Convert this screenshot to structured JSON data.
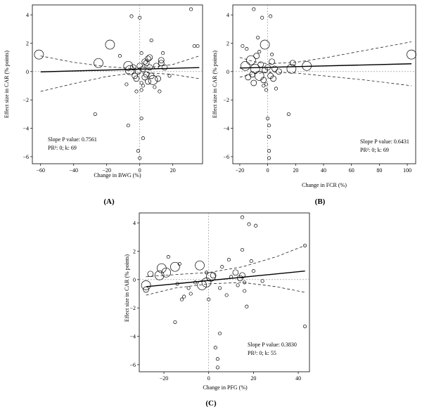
{
  "chart_data": [
    {
      "id": "A",
      "type": "scatter",
      "panel_label": "(A)",
      "xlabel": "Change in BWG (%)",
      "ylabel": "Effect size in CAR (% points)",
      "xlim": [
        -65,
        38
      ],
      "ylim": [
        -6.5,
        4.7
      ],
      "xticks": [
        -60,
        -40,
        -20,
        0,
        20
      ],
      "yticks": [
        -6,
        -4,
        -2,
        0,
        2,
        4
      ],
      "annotation_line1": "Slope P value: 0.7561",
      "annotation_line2": "PR²: 0; k: 69",
      "grid": false,
      "reference_lines": {
        "x": 0,
        "y": 0
      },
      "regression": {
        "x0": -60,
        "y0": -0.02,
        "x1": 36,
        "y1": 0.28
      },
      "ci_upper": [
        [
          -60,
          1.1
        ],
        [
          -40,
          0.65
        ],
        [
          -20,
          0.35
        ],
        [
          -5,
          0.22
        ],
        [
          5,
          0.28
        ],
        [
          20,
          0.5
        ],
        [
          36,
          1.1
        ]
      ],
      "ci_lower": [
        [
          -60,
          -1.4
        ],
        [
          -40,
          -0.85
        ],
        [
          -20,
          -0.35
        ],
        [
          -5,
          -0.12
        ],
        [
          5,
          -0.08
        ],
        [
          20,
          -0.2
        ],
        [
          36,
          -0.5
        ]
      ],
      "points": [
        {
          "x": -61,
          "y": 1.2,
          "w": 3
        },
        {
          "x": -25,
          "y": 0.6,
          "w": 3
        },
        {
          "x": -27,
          "y": -3.0,
          "w": 1
        },
        {
          "x": -18,
          "y": 1.9,
          "w": 3
        },
        {
          "x": -12,
          "y": 1.1,
          "w": 1
        },
        {
          "x": -7,
          "y": 0.4,
          "w": 3
        },
        {
          "x": -6,
          "y": 0.1,
          "w": 3
        },
        {
          "x": -4,
          "y": 0.3,
          "w": 2
        },
        {
          "x": -3,
          "y": -0.3,
          "w": 2
        },
        {
          "x": -5,
          "y": 3.9,
          "w": 1
        },
        {
          "x": -8,
          "y": -0.9,
          "w": 1
        },
        {
          "x": -7,
          "y": -3.8,
          "w": 1
        },
        {
          "x": -2,
          "y": -0.5,
          "w": 2
        },
        {
          "x": -1,
          "y": 0.0,
          "w": 2
        },
        {
          "x": 0,
          "y": 3.8,
          "w": 1
        },
        {
          "x": 0,
          "y": 0.4,
          "w": 2
        },
        {
          "x": 1,
          "y": -0.8,
          "w": 1
        },
        {
          "x": 1,
          "y": -1.3,
          "w": 1
        },
        {
          "x": 1,
          "y": 1.3,
          "w": 1
        },
        {
          "x": 2,
          "y": 0.2,
          "w": 2
        },
        {
          "x": 2,
          "y": -1.0,
          "w": 1
        },
        {
          "x": 3,
          "y": -0.4,
          "w": 2
        },
        {
          "x": 3,
          "y": 0.7,
          "w": 2
        },
        {
          "x": 2,
          "y": -4.7,
          "w": 1
        },
        {
          "x": -1,
          "y": -5.6,
          "w": 1
        },
        {
          "x": 0,
          "y": -6.1,
          "w": 1
        },
        {
          "x": 4,
          "y": -0.2,
          "w": 2
        },
        {
          "x": 5,
          "y": 0.9,
          "w": 2
        },
        {
          "x": 5,
          "y": -0.7,
          "w": 2
        },
        {
          "x": 6,
          "y": 0.3,
          "w": 2
        },
        {
          "x": 6,
          "y": 1.0,
          "w": 2
        },
        {
          "x": 7,
          "y": 2.2,
          "w": 1
        },
        {
          "x": 7,
          "y": -0.3,
          "w": 2
        },
        {
          "x": 8,
          "y": -0.6,
          "w": 3
        },
        {
          "x": 9,
          "y": -1.1,
          "w": 1
        },
        {
          "x": 10,
          "y": 0.4,
          "w": 2
        },
        {
          "x": 11,
          "y": -0.5,
          "w": 2
        },
        {
          "x": 13,
          "y": 0.6,
          "w": 2
        },
        {
          "x": 13,
          "y": 0.8,
          "w": 2
        },
        {
          "x": 14,
          "y": 1.3,
          "w": 1
        },
        {
          "x": 15,
          "y": 0.3,
          "w": 2
        },
        {
          "x": 12,
          "y": -1.4,
          "w": 1
        },
        {
          "x": 18,
          "y": -0.3,
          "w": 1
        },
        {
          "x": 31,
          "y": 4.4,
          "w": 1
        },
        {
          "x": 33,
          "y": 1.8,
          "w": 1
        },
        {
          "x": 35,
          "y": 1.8,
          "w": 1
        },
        {
          "x": 1,
          "y": -3.3,
          "w": 1
        },
        {
          "x": 4,
          "y": 0.6,
          "w": 2
        },
        {
          "x": -2,
          "y": -1.4,
          "w": 1
        }
      ]
    },
    {
      "id": "B",
      "type": "scatter",
      "panel_label": "(B)",
      "xlabel": "Change in FCR (%)",
      "ylabel": "Effect size in CAR (% points)",
      "xlim": [
        -25,
        106
      ],
      "ylim": [
        -6.5,
        4.7
      ],
      "xticks": [
        -20,
        0,
        20,
        40,
        60,
        80,
        100
      ],
      "yticks": [
        -6,
        -4,
        -2,
        0,
        2,
        4
      ],
      "annotation_line1": "Slope P value: 0.6431",
      "annotation_line2": "PR²: 0; k: 69",
      "grid": false,
      "reference_lines": {
        "x": 0,
        "y": 0
      },
      "regression": {
        "x0": -20,
        "y0": 0.25,
        "x1": 103,
        "y1": 0.55
      },
      "ci_upper": [
        [
          -20,
          1.0
        ],
        [
          -10,
          0.7
        ],
        [
          0,
          0.55
        ],
        [
          20,
          0.65
        ],
        [
          40,
          0.95
        ],
        [
          70,
          1.5
        ],
        [
          103,
          2.1
        ]
      ],
      "ci_lower": [
        [
          -20,
          -0.4
        ],
        [
          -10,
          -0.15
        ],
        [
          0,
          -0.05
        ],
        [
          20,
          -0.1
        ],
        [
          40,
          -0.3
        ],
        [
          70,
          -0.6
        ],
        [
          103,
          -1.0
        ]
      ],
      "points": [
        {
          "x": -18,
          "y": 1.8,
          "w": 1
        },
        {
          "x": -16,
          "y": 0.4,
          "w": 3
        },
        {
          "x": -15,
          "y": 1.6,
          "w": 1
        },
        {
          "x": -12,
          "y": 0.8,
          "w": 3
        },
        {
          "x": -10,
          "y": 4.4,
          "w": 1
        },
        {
          "x": -8,
          "y": 1.1,
          "w": 2
        },
        {
          "x": -6,
          "y": -0.3,
          "w": 3
        },
        {
          "x": -5,
          "y": 0.5,
          "w": 2
        },
        {
          "x": -4,
          "y": 3.8,
          "w": 1
        },
        {
          "x": -3,
          "y": -0.6,
          "w": 2
        },
        {
          "x": -2,
          "y": 1.9,
          "w": 3
        },
        {
          "x": -2,
          "y": 0.1,
          "w": 2
        },
        {
          "x": -1,
          "y": -0.9,
          "w": 1
        },
        {
          "x": -1,
          "y": -1.3,
          "w": 1
        },
        {
          "x": 0,
          "y": 0.3,
          "w": 2
        },
        {
          "x": 0,
          "y": -3.3,
          "w": 1
        },
        {
          "x": 1,
          "y": -3.8,
          "w": 1
        },
        {
          "x": 1,
          "y": -4.6,
          "w": 1
        },
        {
          "x": 1,
          "y": -5.6,
          "w": 1
        },
        {
          "x": 1,
          "y": -6.1,
          "w": 1
        },
        {
          "x": 2,
          "y": 3.9,
          "w": 1
        },
        {
          "x": 2,
          "y": -0.3,
          "w": 2
        },
        {
          "x": 3,
          "y": 0.7,
          "w": 2
        },
        {
          "x": 4,
          "y": -0.5,
          "w": 2
        },
        {
          "x": 5,
          "y": 0.2,
          "w": 2
        },
        {
          "x": 6,
          "y": -1.2,
          "w": 1
        },
        {
          "x": 8,
          "y": 0.0,
          "w": 2
        },
        {
          "x": -14,
          "y": -0.4,
          "w": 2
        },
        {
          "x": -10,
          "y": -0.8,
          "w": 2
        },
        {
          "x": -7,
          "y": 2.4,
          "w": 1
        },
        {
          "x": -6,
          "y": 1.4,
          "w": 1
        },
        {
          "x": -9,
          "y": 0.2,
          "w": 3
        },
        {
          "x": 15,
          "y": -3.0,
          "w": 1
        },
        {
          "x": 17,
          "y": 0.2,
          "w": 3
        },
        {
          "x": 18,
          "y": 0.6,
          "w": 2
        },
        {
          "x": 28,
          "y": 0.4,
          "w": 3
        },
        {
          "x": 103,
          "y": 1.2,
          "w": 3
        },
        {
          "x": -3,
          "y": -1.0,
          "w": 1
        },
        {
          "x": 3,
          "y": 1.2,
          "w": 1
        },
        {
          "x": -11,
          "y": -0.2,
          "w": 2
        }
      ]
    },
    {
      "id": "C",
      "type": "scatter",
      "panel_label": "(C)",
      "xlabel": "Change in PFG (%)",
      "ylabel": "Effect size in CAR (% points)",
      "xlim": [
        -31,
        45
      ],
      "ylim": [
        -6.5,
        4.7
      ],
      "xticks": [
        -20,
        0,
        20,
        40
      ],
      "yticks": [
        -6,
        -4,
        -2,
        0,
        2,
        4
      ],
      "annotation_line1": "Slope P value: 0.3830",
      "annotation_line2": "PR²: 0; k: 55",
      "grid": false,
      "reference_lines": {
        "x": 0,
        "y": 0
      },
      "regression": {
        "x0": -28,
        "y0": -0.5,
        "x1": 43,
        "y1": 0.6
      },
      "ci_upper": [
        [
          -28,
          0.2
        ],
        [
          -15,
          0.35
        ],
        [
          0,
          0.5
        ],
        [
          15,
          0.9
        ],
        [
          30,
          1.6
        ],
        [
          43,
          2.4
        ]
      ],
      "ci_lower": [
        [
          -28,
          -1.1
        ],
        [
          -15,
          -0.6
        ],
        [
          0,
          -0.3
        ],
        [
          15,
          -0.2
        ],
        [
          30,
          -0.5
        ],
        [
          43,
          -0.9
        ]
      ],
      "points": [
        {
          "x": -28,
          "y": -0.4,
          "w": 3
        },
        {
          "x": -28,
          "y": -0.7,
          "w": 2
        },
        {
          "x": -26,
          "y": 0.4,
          "w": 2
        },
        {
          "x": -22,
          "y": 0.3,
          "w": 3
        },
        {
          "x": -21,
          "y": 0.8,
          "w": 3
        },
        {
          "x": -19,
          "y": 0.5,
          "w": 3
        },
        {
          "x": -18,
          "y": 1.6,
          "w": 1
        },
        {
          "x": -15,
          "y": 0.9,
          "w": 3
        },
        {
          "x": -14,
          "y": -0.3,
          "w": 1
        },
        {
          "x": -13,
          "y": 1.1,
          "w": 1
        },
        {
          "x": -12,
          "y": -1.4,
          "w": 1
        },
        {
          "x": -11,
          "y": -1.2,
          "w": 1
        },
        {
          "x": -9,
          "y": -0.6,
          "w": 1
        },
        {
          "x": -15,
          "y": -3.0,
          "w": 1
        },
        {
          "x": -8,
          "y": -1.0,
          "w": 1
        },
        {
          "x": -6,
          "y": -0.2,
          "w": 1
        },
        {
          "x": -4,
          "y": 1.0,
          "w": 3
        },
        {
          "x": -3,
          "y": -0.4,
          "w": 3
        },
        {
          "x": -1,
          "y": 0.5,
          "w": 1
        },
        {
          "x": -1,
          "y": -0.2,
          "w": 3
        },
        {
          "x": 0,
          "y": -1.4,
          "w": 1
        },
        {
          "x": 2,
          "y": 0.3,
          "w": 2
        },
        {
          "x": 3,
          "y": -4.8,
          "w": 1
        },
        {
          "x": 4,
          "y": -5.6,
          "w": 1
        },
        {
          "x": 5,
          "y": -3.8,
          "w": 1
        },
        {
          "x": 4,
          "y": -6.2,
          "w": 1
        },
        {
          "x": 5,
          "y": -0.6,
          "w": 1
        },
        {
          "x": 6,
          "y": 0.9,
          "w": 1
        },
        {
          "x": 8,
          "y": -1.1,
          "w": 1
        },
        {
          "x": 9,
          "y": 1.4,
          "w": 1
        },
        {
          "x": 10,
          "y": 0.2,
          "w": 1
        },
        {
          "x": 12,
          "y": 0.5,
          "w": 2
        },
        {
          "x": 13,
          "y": -0.4,
          "w": 1
        },
        {
          "x": 15,
          "y": 0.3,
          "w": 2
        },
        {
          "x": 15,
          "y": 4.4,
          "w": 1
        },
        {
          "x": 15,
          "y": 2.1,
          "w": 1
        },
        {
          "x": 16,
          "y": -0.8,
          "w": 1
        },
        {
          "x": 16,
          "y": -0.2,
          "w": 1
        },
        {
          "x": 17,
          "y": -1.9,
          "w": 1
        },
        {
          "x": 18,
          "y": 3.9,
          "w": 1
        },
        {
          "x": 19,
          "y": 1.3,
          "w": 1
        },
        {
          "x": 20,
          "y": 0.6,
          "w": 1
        },
        {
          "x": 21,
          "y": 3.8,
          "w": 1
        },
        {
          "x": 24,
          "y": -0.1,
          "w": 1
        },
        {
          "x": 43,
          "y": 2.4,
          "w": 1
        },
        {
          "x": 43,
          "y": -3.3,
          "w": 1
        },
        {
          "x": 14,
          "y": 0.1,
          "w": 2
        },
        {
          "x": 1,
          "y": 0.2,
          "w": 3
        }
      ]
    }
  ]
}
